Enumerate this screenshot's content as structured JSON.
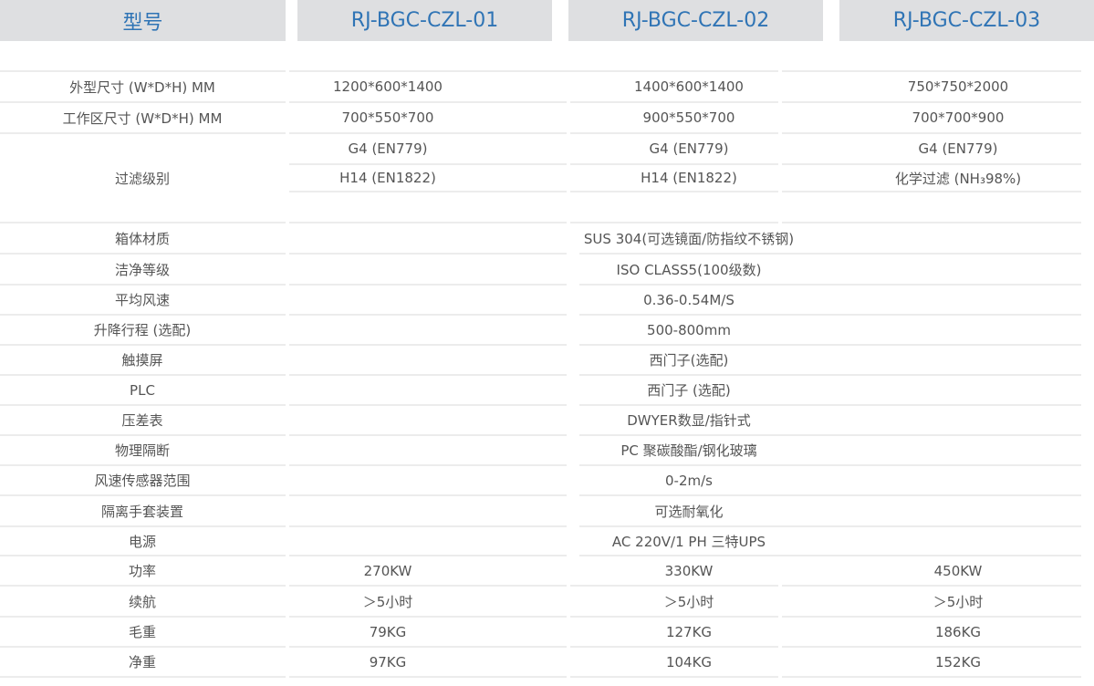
{
  "header": {
    "label": "型号",
    "models": [
      "RJ-BGC-CZL-01",
      "RJ-BGC-CZL-02",
      "RJ-BGC-CZL-03"
    ]
  },
  "rows": [
    {
      "label": "外型尺寸 (W*D*H) MM",
      "values": [
        "1200*600*1400",
        "1400*600*1400",
        "750*750*2000"
      ]
    },
    {
      "label": "工作区尺寸 (W*D*H) MM",
      "values": [
        "700*550*700",
        "900*550*700",
        "700*700*900"
      ]
    },
    {
      "label": "过滤级别",
      "sub": [
        [
          "G4 (EN779)",
          "G4 (EN779)",
          "G4 (EN779)"
        ],
        [
          "H14 (EN1822)",
          "H14 (EN1822)",
          "化学过滤 (NH₃98%)"
        ]
      ]
    },
    {
      "label": "箱体材质",
      "merged": "SUS 304(可选镜面/防指纹不锈钢)"
    },
    {
      "label": "洁净等级",
      "merged": "ISO CLASS5(100级数)"
    },
    {
      "label": "平均风速",
      "merged": "0.36-0.54M/S"
    },
    {
      "label": "升降行程 (选配)",
      "merged": "500-800mm"
    },
    {
      "label": "触摸屏",
      "merged": "西门子(选配)"
    },
    {
      "label": "PLC",
      "merged": "西门子 (选配)"
    },
    {
      "label": "压差表",
      "merged": "DWYER数显/指针式"
    },
    {
      "label": "物理隔断",
      "merged": "PC  聚碳酸酯/钢化玻璃"
    },
    {
      "label": "风速传感器范围",
      "merged": "0-2m/s"
    },
    {
      "label": "隔离手套装置",
      "merged": "可选耐氧化"
    },
    {
      "label": "电源",
      "merged": "AC 220V/1 PH 三特UPS"
    },
    {
      "label": "功率",
      "values": [
        "270KW",
        "330KW",
        "450KW"
      ]
    },
    {
      "label": "续航",
      "values": [
        "＞5小时",
        "＞5小时",
        "＞5小时"
      ]
    },
    {
      "label": "毛重",
      "values": [
        "79KG",
        "127KG",
        "186KG"
      ]
    },
    {
      "label": "净重",
      "values": [
        "97KG",
        "104KG",
        "152KG"
      ]
    }
  ],
  "colors": {
    "header_bg": "#dedfe1",
    "header_text": "#2f74b5",
    "body_text": "#555555",
    "rule": "#ececec"
  }
}
